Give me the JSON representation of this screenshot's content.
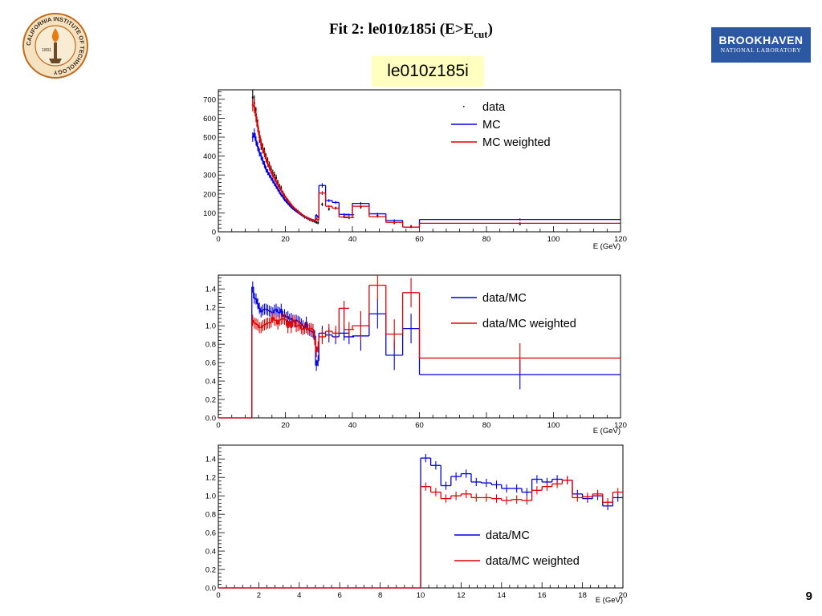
{
  "header": {
    "title_prefix": "Fit 2: le010z185i (E>E",
    "title_sub": "cut",
    "title_suffix": ")",
    "badge": "le010z185i",
    "badge_color": "#ffffc0"
  },
  "logos": {
    "left": {
      "icon": "caltech-seal-icon",
      "text": "CALIFORNIA INSTITUTE OF TECHNOLOGY",
      "year": "1891"
    },
    "right": {
      "icon": "brookhaven-logo-icon",
      "line1": "BROOKHAVEN",
      "line2": "NATIONAL LABORATORY",
      "color": "#2b57a3"
    }
  },
  "page_number": "9",
  "colors": {
    "data": "#000000",
    "mc": "#0000e0",
    "mc_weighted": "#e00000"
  },
  "chart_data": [
    {
      "type": "line",
      "xlabel": "E (GeV)",
      "xlim": [
        0,
        120
      ],
      "ylim": [
        0,
        750
      ],
      "xticks": [
        0,
        20,
        40,
        60,
        80,
        100,
        120
      ],
      "yticks": [
        0,
        100,
        200,
        300,
        400,
        500,
        600,
        700
      ],
      "legend": "top-right",
      "legend_entries": [
        "data",
        "MC",
        "MC weighted"
      ],
      "x": [
        10.25,
        10.75,
        11.25,
        11.75,
        12.25,
        12.75,
        13.25,
        13.75,
        14.25,
        14.75,
        15.25,
        15.75,
        16.25,
        16.75,
        17.25,
        17.75,
        18.25,
        18.75,
        19.25,
        19.75,
        20.25,
        20.75,
        21.25,
        21.75,
        22.25,
        22.75,
        23.25,
        23.75,
        24.25,
        24.75,
        25.25,
        25.75,
        26.25,
        26.75,
        27.25,
        27.75,
        28.25,
        28.75,
        29.25,
        29.75,
        31,
        33,
        35,
        37.5,
        39,
        42.5,
        47.5,
        52.5,
        57.5,
        90
      ],
      "x_bin_widths": [
        0.5,
        0.5,
        0.5,
        0.5,
        0.5,
        0.5,
        0.5,
        0.5,
        0.5,
        0.5,
        0.5,
        0.5,
        0.5,
        0.5,
        0.5,
        0.5,
        0.5,
        0.5,
        0.5,
        0.5,
        0.5,
        0.5,
        0.5,
        0.5,
        0.5,
        0.5,
        0.5,
        0.5,
        0.5,
        0.5,
        0.5,
        0.5,
        0.5,
        0.5,
        0.5,
        0.5,
        0.5,
        0.5,
        0.5,
        0.5,
        2,
        2,
        2,
        3,
        3,
        5,
        5,
        5,
        5,
        60
      ],
      "series": [
        {
          "name": "data",
          "values": [
            710,
            680,
            620,
            560,
            500,
            460,
            440,
            420,
            390,
            370,
            350,
            330,
            310,
            300,
            285,
            260,
            240,
            230,
            205,
            190,
            175,
            165,
            150,
            140,
            130,
            120,
            115,
            108,
            100,
            92,
            85,
            78,
            75,
            70,
            65,
            62,
            58,
            55,
            50,
            48,
            145,
            120,
            125,
            80,
            75,
            130,
            85,
            48,
            28,
            42
          ]
        },
        {
          "name": "MC",
          "values": [
            500,
            520,
            480,
            450,
            420,
            400,
            375,
            355,
            330,
            315,
            300,
            285,
            270,
            255,
            240,
            225,
            210,
            195,
            185,
            170,
            160,
            150,
            140,
            130,
            122,
            115,
            108,
            102,
            96,
            90,
            85,
            80,
            75,
            72,
            68,
            65,
            62,
            60,
            88,
            78,
            245,
            165,
            155,
            92,
            90,
            150,
            95,
            60,
            25,
            65
          ]
        },
        {
          "name": "MC weighted",
          "values": [
            670,
            660,
            610,
            555,
            510,
            470,
            440,
            415,
            385,
            360,
            340,
            320,
            300,
            285,
            268,
            250,
            235,
            218,
            205,
            190,
            178,
            165,
            155,
            143,
            133,
            124,
            116,
            108,
            100,
            94,
            88,
            82,
            77,
            73,
            68,
            64,
            60,
            57,
            70,
            62,
            205,
            135,
            125,
            78,
            75,
            135,
            80,
            50,
            25,
            45
          ]
        }
      ]
    },
    {
      "type": "line",
      "xlabel": "E (GeV)",
      "xlim": [
        0,
        120
      ],
      "ylim": [
        0,
        1.55
      ],
      "xticks": [
        0,
        20,
        40,
        60,
        80,
        100,
        120
      ],
      "yticks": [
        0,
        0.2,
        0.4,
        0.6,
        0.8,
        1,
        1.2,
        1.4
      ],
      "legend": "top-right",
      "legend_entries": [
        "data/MC",
        "data/MC weighted"
      ],
      "x": [
        5,
        10.25,
        10.75,
        11.25,
        11.75,
        12.25,
        12.75,
        13.25,
        13.75,
        14.25,
        14.75,
        15.25,
        15.75,
        16.25,
        16.75,
        17.25,
        17.75,
        18.25,
        18.75,
        19.25,
        19.75,
        20.25,
        20.75,
        21.25,
        21.75,
        22.25,
        22.75,
        23.25,
        23.75,
        24.25,
        24.75,
        25.25,
        25.75,
        26.25,
        26.75,
        27.25,
        27.75,
        28.25,
        28.75,
        29.25,
        29.75,
        31,
        33,
        35,
        37.5,
        39,
        42.5,
        47.5,
        52.5,
        57.5,
        90
      ],
      "x_bin_widths": [
        10,
        0.5,
        0.5,
        0.5,
        0.5,
        0.5,
        0.5,
        0.5,
        0.5,
        0.5,
        0.5,
        0.5,
        0.5,
        0.5,
        0.5,
        0.5,
        0.5,
        0.5,
        0.5,
        0.5,
        0.5,
        0.5,
        0.5,
        0.5,
        0.5,
        0.5,
        0.5,
        0.5,
        0.5,
        0.5,
        0.5,
        0.5,
        0.5,
        0.5,
        0.5,
        0.5,
        0.5,
        0.5,
        0.5,
        0.5,
        0.5,
        2,
        2,
        2,
        3,
        3,
        5,
        5,
        5,
        5,
        60
      ],
      "series": [
        {
          "name": "data/MC",
          "values": [
            0,
            1.42,
            1.3,
            1.29,
            1.24,
            1.19,
            1.15,
            1.17,
            1.18,
            1.18,
            1.17,
            1.16,
            1.15,
            1.14,
            1.17,
            1.18,
            1.15,
            1.14,
            1.18,
            1.1,
            1.12,
            1.09,
            1.1,
            1.07,
            1.08,
            1.06,
            1.04,
            1.06,
            1.05,
            1.04,
            1.02,
            1.0,
            0.97,
            1.04,
            0.96,
            0.95,
            0.94,
            0.93,
            0.89,
            0.57,
            0.62,
            0.92,
            0.9,
            0.88,
            0.92,
            0.88,
            0.89,
            1.13,
            0.68,
            0.97,
            0.47
          ]
        },
        {
          "name": "data/MC weighted",
          "values": [
            0,
            1.06,
            1.03,
            1.02,
            1.01,
            0.98,
            0.98,
            1.0,
            1.01,
            1.02,
            1.03,
            1.03,
            1.04,
            1.09,
            1.06,
            1.06,
            1.02,
            1.06,
            1.07,
            1.08,
            1.07,
            1.06,
            0.98,
            1.05,
            0.98,
            1.05,
            1.06,
            0.99,
            1.0,
            1.01,
            0.97,
            0.96,
            0.97,
            0.98,
            0.96,
            0.97,
            0.97,
            0.96,
            0.85,
            0.72,
            0.77,
            0.88,
            0.94,
            0.92,
            1.19,
            0.96,
            1.0,
            1.44,
            0.91,
            1.36,
            0.65
          ]
        }
      ]
    },
    {
      "type": "line",
      "xlabel": "E (GeV)",
      "xlim": [
        0,
        20
      ],
      "ylim": [
        0,
        1.55
      ],
      "xticks": [
        0,
        2,
        4,
        6,
        8,
        10,
        12,
        14,
        16,
        18,
        20
      ],
      "yticks": [
        0,
        0.2,
        0.4,
        0.6,
        0.8,
        1,
        1.2,
        1.4
      ],
      "legend": "bottom-right",
      "legend_entries": [
        "data/MC",
        "data/MC weighted"
      ],
      "x": [
        5,
        10.25,
        10.75,
        11.25,
        11.75,
        12.25,
        12.75,
        13.25,
        13.75,
        14.25,
        14.75,
        15.25,
        15.75,
        16.25,
        16.75,
        17.25,
        17.75,
        18.25,
        18.75,
        19.25,
        19.75
      ],
      "x_bin_widths": [
        10,
        0.5,
        0.5,
        0.5,
        0.5,
        0.5,
        0.5,
        0.5,
        0.5,
        0.5,
        0.5,
        0.5,
        0.5,
        0.5,
        0.5,
        0.5,
        0.5,
        0.5,
        0.5,
        0.5,
        0.5
      ],
      "series": [
        {
          "name": "data/MC",
          "values": [
            0,
            1.41,
            1.33,
            1.11,
            1.21,
            1.24,
            1.15,
            1.14,
            1.12,
            1.08,
            1.08,
            1.04,
            1.18,
            1.15,
            1.18,
            1.17,
            1.02,
            0.97,
            1.0,
            0.89,
            0.98
          ]
        },
        {
          "name": "data/MC weighted",
          "values": [
            0,
            1.1,
            1.04,
            0.97,
            1.0,
            1.02,
            0.98,
            0.98,
            0.97,
            0.95,
            0.96,
            0.95,
            1.06,
            1.1,
            1.13,
            1.17,
            0.98,
            0.99,
            1.02,
            0.93,
            1.04
          ]
        }
      ]
    }
  ]
}
